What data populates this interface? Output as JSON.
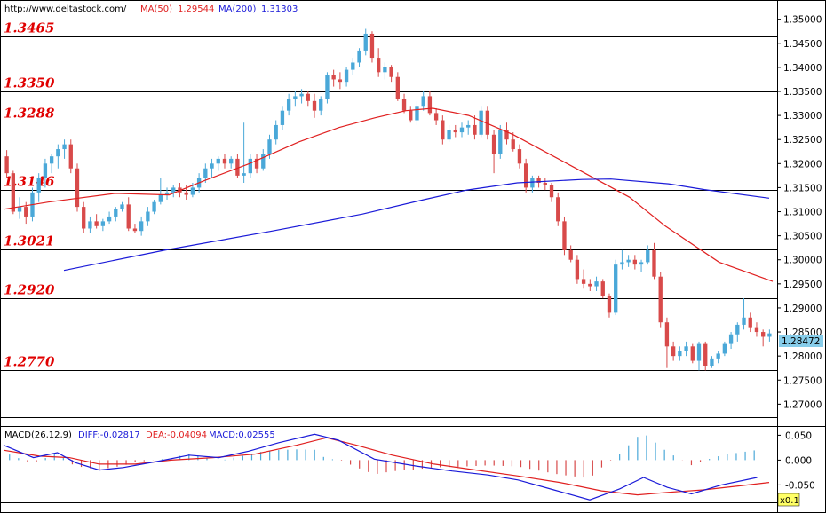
{
  "header": {
    "source": "http://www.deltastock.com/",
    "ma50_label": "MA(50)",
    "ma50_value": "1.29544",
    "ma200_label": "MA(200)",
    "ma200_value": "1.31303"
  },
  "colors": {
    "up": "#4aa8d8",
    "down": "#d84a4a",
    "ma50": "#e02020",
    "ma200": "#1a1ad8",
    "level_line": "#000000",
    "level_text": "#e00000",
    "macd_diff": "#1a1ad8",
    "macd_dea": "#e02020",
    "price_tag": "#87cdea"
  },
  "levels": [
    "1.3465",
    "1.3350",
    "1.3288",
    "1.3146",
    "1.3021",
    "1.2920",
    "1.2770"
  ],
  "price_axis": {
    "ticks": [
      "1.35000",
      "1.34500",
      "1.34000",
      "1.33500",
      "1.33000",
      "1.32500",
      "1.32000",
      "1.31500",
      "1.31000",
      "1.30500",
      "1.30000",
      "1.29500",
      "1.29000",
      "1.28500",
      "1.28000",
      "1.27500",
      "1.27000"
    ],
    "current_price": "1.28472",
    "ylim": [
      1.2673,
      1.354
    ]
  },
  "macd": {
    "label": "MACD(26,12,9)",
    "diff_label": "DIFF:-0.02817",
    "dea_label": "DEA:-0.04094",
    "macd_label": "MACD:0.02555",
    "ticks": [
      "0.050",
      "0.000",
      "-0.050"
    ],
    "scale_tag": "x0.1"
  },
  "chart_data": {
    "type": "candlestick",
    "title": "",
    "series": [
      {
        "name": "MA(50)"
      },
      {
        "name": "MA(200)"
      }
    ],
    "candles": [
      [
        1.3215,
        1.3228,
        1.317,
        1.318
      ],
      [
        1.318,
        1.3185,
        1.3095,
        1.31
      ],
      [
        1.31,
        1.313,
        1.3085,
        1.311
      ],
      [
        1.311,
        1.312,
        1.3075,
        1.309
      ],
      [
        1.309,
        1.315,
        1.308,
        1.314
      ],
      [
        1.314,
        1.318,
        1.312,
        1.317
      ],
      [
        1.317,
        1.321,
        1.315,
        1.32
      ],
      [
        1.32,
        1.322,
        1.318,
        1.3215
      ],
      [
        1.3215,
        1.324,
        1.319,
        1.323
      ],
      [
        1.323,
        1.325,
        1.321,
        1.324
      ],
      [
        1.324,
        1.325,
        1.318,
        1.319
      ],
      [
        1.319,
        1.32,
        1.31,
        1.311
      ],
      [
        1.311,
        1.312,
        1.3055,
        1.3065
      ],
      [
        1.3065,
        1.309,
        1.3055,
        1.308
      ],
      [
        1.308,
        1.3095,
        1.3065,
        1.307
      ],
      [
        1.307,
        1.3085,
        1.306,
        1.308
      ],
      [
        1.308,
        1.31,
        1.3075,
        1.309
      ],
      [
        1.309,
        1.311,
        1.308,
        1.3105
      ],
      [
        1.3105,
        1.312,
        1.31,
        1.3115
      ],
      [
        1.3115,
        1.313,
        1.306,
        1.3065
      ],
      [
        1.3065,
        1.3075,
        1.3055,
        1.306
      ],
      [
        1.306,
        1.309,
        1.305,
        1.308
      ],
      [
        1.308,
        1.311,
        1.307,
        1.31
      ],
      [
        1.31,
        1.3125,
        1.3095,
        1.312
      ],
      [
        1.312,
        1.317,
        1.3115,
        1.3135
      ],
      [
        1.3135,
        1.315,
        1.3125,
        1.314
      ],
      [
        1.314,
        1.3155,
        1.313,
        1.315
      ],
      [
        1.315,
        1.316,
        1.313,
        1.314
      ],
      [
        1.314,
        1.3155,
        1.3125,
        1.3135
      ],
      [
        1.3135,
        1.316,
        1.313,
        1.315
      ],
      [
        1.315,
        1.318,
        1.314,
        1.317
      ],
      [
        1.317,
        1.32,
        1.316,
        1.319
      ],
      [
        1.319,
        1.321,
        1.317,
        1.32
      ],
      [
        1.32,
        1.3215,
        1.3185,
        1.321
      ],
      [
        1.321,
        1.322,
        1.319,
        1.32
      ],
      [
        1.32,
        1.3215,
        1.319,
        1.321
      ],
      [
        1.321,
        1.322,
        1.317,
        1.3175
      ],
      [
        1.3175,
        1.3285,
        1.316,
        1.318
      ],
      [
        1.318,
        1.322,
        1.317,
        1.321
      ],
      [
        1.321,
        1.322,
        1.318,
        1.319
      ],
      [
        1.319,
        1.323,
        1.3185,
        1.322
      ],
      [
        1.322,
        1.326,
        1.321,
        1.325
      ],
      [
        1.325,
        1.329,
        1.324,
        1.328
      ],
      [
        1.328,
        1.332,
        1.327,
        1.331
      ],
      [
        1.331,
        1.3345,
        1.33,
        1.3335
      ],
      [
        1.3335,
        1.335,
        1.332,
        1.334
      ],
      [
        1.334,
        1.3355,
        1.3325,
        1.3345
      ],
      [
        1.3345,
        1.335,
        1.332,
        1.333
      ],
      [
        1.333,
        1.3345,
        1.3295,
        1.331
      ],
      [
        1.331,
        1.334,
        1.33,
        1.3335
      ],
      [
        1.3335,
        1.339,
        1.3325,
        1.3385
      ],
      [
        1.3385,
        1.3395,
        1.336,
        1.3375
      ],
      [
        1.3375,
        1.339,
        1.3355,
        1.337
      ],
      [
        1.337,
        1.34,
        1.336,
        1.3395
      ],
      [
        1.3395,
        1.342,
        1.3385,
        1.341
      ],
      [
        1.341,
        1.344,
        1.34,
        1.3435
      ],
      [
        1.3435,
        1.348,
        1.3425,
        1.347
      ],
      [
        1.347,
        1.3475,
        1.341,
        1.342
      ],
      [
        1.342,
        1.344,
        1.338,
        1.339
      ],
      [
        1.339,
        1.341,
        1.3375,
        1.34
      ],
      [
        1.34,
        1.3405,
        1.337,
        1.338
      ],
      [
        1.338,
        1.339,
        1.333,
        1.3335
      ],
      [
        1.3335,
        1.3345,
        1.3305,
        1.331
      ],
      [
        1.331,
        1.332,
        1.3285,
        1.329
      ],
      [
        1.329,
        1.333,
        1.328,
        1.332
      ],
      [
        1.332,
        1.335,
        1.331,
        1.334
      ],
      [
        1.334,
        1.335,
        1.33,
        1.3305
      ],
      [
        1.3305,
        1.3315,
        1.328,
        1.329
      ],
      [
        1.329,
        1.33,
        1.324,
        1.325
      ],
      [
        1.325,
        1.328,
        1.3245,
        1.327
      ],
      [
        1.327,
        1.328,
        1.3255,
        1.3265
      ],
      [
        1.3265,
        1.3285,
        1.3255,
        1.3275
      ],
      [
        1.3275,
        1.329,
        1.326,
        1.328
      ],
      [
        1.328,
        1.33,
        1.325,
        1.326
      ],
      [
        1.326,
        1.332,
        1.3255,
        1.331
      ],
      [
        1.331,
        1.332,
        1.325,
        1.326
      ],
      [
        1.326,
        1.327,
        1.318,
        1.322
      ],
      [
        1.322,
        1.328,
        1.321,
        1.327
      ],
      [
        1.327,
        1.3285,
        1.324,
        1.325
      ],
      [
        1.325,
        1.3265,
        1.3225,
        1.323
      ],
      [
        1.323,
        1.324,
        1.319,
        1.32
      ],
      [
        1.32,
        1.321,
        1.314,
        1.315
      ],
      [
        1.315,
        1.3175,
        1.314,
        1.317
      ],
      [
        1.317,
        1.3175,
        1.315,
        1.316
      ],
      [
        1.316,
        1.317,
        1.3145,
        1.3155
      ],
      [
        1.3155,
        1.316,
        1.312,
        1.313
      ],
      [
        1.313,
        1.314,
        1.307,
        1.308
      ],
      [
        1.308,
        1.309,
        1.301,
        1.302
      ],
      [
        1.302,
        1.303,
        1.2995,
        1.3
      ],
      [
        1.3,
        1.301,
        1.295,
        1.296
      ],
      [
        1.296,
        1.298,
        1.294,
        1.295
      ],
      [
        1.295,
        1.296,
        1.2935,
        1.2945
      ],
      [
        1.2945,
        1.2965,
        1.2935,
        1.2955
      ],
      [
        1.2955,
        1.296,
        1.292,
        1.2925
      ],
      [
        1.2925,
        1.293,
        1.288,
        1.289
      ],
      [
        1.289,
        1.3,
        1.2885,
        1.299
      ],
      [
        1.299,
        1.302,
        1.298,
        1.2995
      ],
      [
        1.2995,
        1.301,
        1.2985,
        1.3
      ],
      [
        1.3,
        1.301,
        1.298,
        1.299
      ],
      [
        1.299,
        1.3,
        1.2975,
        1.2995
      ],
      [
        1.2995,
        1.303,
        1.299,
        1.302
      ],
      [
        1.302,
        1.3035,
        1.296,
        1.2965
      ],
      [
        1.2965,
        1.2975,
        1.286,
        1.287
      ],
      [
        1.287,
        1.288,
        1.2775,
        1.282
      ],
      [
        1.282,
        1.283,
        1.279,
        1.28
      ],
      [
        1.28,
        1.282,
        1.279,
        1.281
      ],
      [
        1.281,
        1.283,
        1.28,
        1.282
      ],
      [
        1.282,
        1.2825,
        1.2785,
        1.279
      ],
      [
        1.279,
        1.283,
        1.277,
        1.2825
      ],
      [
        1.2825,
        1.283,
        1.277,
        1.278
      ],
      [
        1.278,
        1.28,
        1.2775,
        1.2795
      ],
      [
        1.2795,
        1.281,
        1.2785,
        1.2805
      ],
      [
        1.2805,
        1.283,
        1.28,
        1.2825
      ],
      [
        1.2825,
        1.285,
        1.2815,
        1.2845
      ],
      [
        1.2845,
        1.287,
        1.283,
        1.2865
      ],
      [
        1.2865,
        1.292,
        1.2855,
        1.288
      ],
      [
        1.288,
        1.289,
        1.285,
        1.286
      ],
      [
        1.286,
        1.287,
        1.284,
        1.285
      ],
      [
        1.285,
        1.2855,
        1.282,
        1.284
      ],
      [
        1.284,
        1.2855,
        1.283,
        1.2847
      ]
    ],
    "ma50": [
      [
        0,
        1.3105
      ],
      [
        10,
        1.312
      ],
      [
        25,
        1.3138
      ],
      [
        37,
        1.3135
      ],
      [
        45,
        1.3165
      ],
      [
        55,
        1.32
      ],
      [
        66,
        1.3245
      ],
      [
        75,
        1.3275
      ],
      [
        83,
        1.3295
      ],
      [
        90,
        1.331
      ],
      [
        96,
        1.3315
      ],
      [
        104,
        1.33
      ],
      [
        114,
        1.326
      ],
      [
        128,
        1.319
      ],
      [
        140,
        1.313
      ],
      [
        148,
        1.307
      ],
      [
        160,
        1.2995
      ],
      [
        172,
        1.2955
      ]
    ],
    "ma200": [
      [
        12,
        1.2978
      ],
      [
        40,
        1.302
      ],
      [
        70,
        1.306
      ],
      [
        95,
        1.3095
      ],
      [
        112,
        1.3125
      ],
      [
        124,
        1.3145
      ],
      [
        138,
        1.316
      ],
      [
        156,
        1.3167
      ],
      [
        164,
        1.3168
      ],
      [
        180,
        1.3158
      ],
      [
        190,
        1.3146
      ],
      [
        208,
        1.3128
      ]
    ],
    "macd_diff": [
      [
        0,
        0.03
      ],
      [
        10,
        0.005
      ],
      [
        18,
        0.015
      ],
      [
        24,
        -0.005
      ],
      [
        32,
        -0.02
      ],
      [
        40,
        -0.015
      ],
      [
        52,
        -0.002
      ],
      [
        62,
        0.01
      ],
      [
        72,
        0.005
      ],
      [
        82,
        0.018
      ],
      [
        92,
        0.035
      ],
      [
        104,
        0.052
      ],
      [
        112,
        0.04
      ],
      [
        124,
        0.002
      ],
      [
        138,
        -0.012
      ],
      [
        150,
        -0.022
      ],
      [
        162,
        -0.03
      ],
      [
        172,
        -0.04
      ],
      [
        184,
        -0.06
      ],
      [
        196,
        -0.08
      ],
      [
        206,
        -0.058
      ],
      [
        214,
        -0.035
      ],
      [
        222,
        -0.055
      ],
      [
        230,
        -0.068
      ],
      [
        240,
        -0.05
      ],
      [
        252,
        -0.035
      ]
    ],
    "macd_dea": [
      [
        0,
        0.02
      ],
      [
        12,
        0.008
      ],
      [
        22,
        0.005
      ],
      [
        32,
        -0.008
      ],
      [
        44,
        -0.008
      ],
      [
        56,
        0.0
      ],
      [
        70,
        0.005
      ],
      [
        84,
        0.012
      ],
      [
        98,
        0.03
      ],
      [
        108,
        0.045
      ],
      [
        118,
        0.03
      ],
      [
        130,
        0.01
      ],
      [
        144,
        -0.008
      ],
      [
        158,
        -0.02
      ],
      [
        172,
        -0.032
      ],
      [
        186,
        -0.045
      ],
      [
        200,
        -0.062
      ],
      [
        212,
        -0.07
      ],
      [
        222,
        -0.065
      ],
      [
        234,
        -0.06
      ],
      [
        246,
        -0.052
      ],
      [
        256,
        -0.045
      ]
    ],
    "macd_hist_ylim": [
      -0.085,
      0.065
    ]
  }
}
